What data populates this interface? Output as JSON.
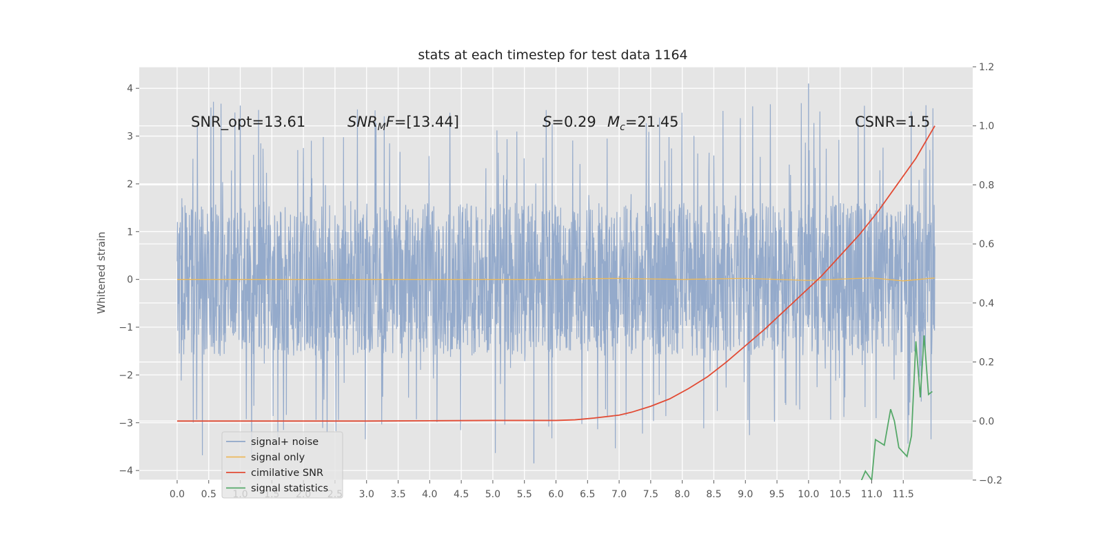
{
  "chart_data": {
    "type": "line",
    "title": "stats at each timestep for test data 1164",
    "ylabel": "Whitened strain",
    "xlabel": "",
    "xlim": [
      -0.6,
      12.6
    ],
    "ylim": [
      -4.2,
      4.45
    ],
    "y2lim": [
      -0.2,
      1.2
    ],
    "grid": true,
    "legend_placement": "lower-left",
    "x_ticks": [
      "0.0",
      "0.5",
      "1.0",
      "1.5",
      "2.0",
      "2.5",
      "3.0",
      "3.5",
      "4.0",
      "4.5",
      "5.0",
      "5.5",
      "6.0",
      "6.5",
      "7.0",
      "7.5",
      "8.0",
      "8.5",
      "9.0",
      "9.5",
      "10.0",
      "10.5",
      "11.0",
      "11.5"
    ],
    "y_ticks": [
      "−4",
      "−3",
      "−2",
      "−1",
      "0",
      "1",
      "2",
      "3",
      "4"
    ],
    "y2_ticks": [
      "−0.2",
      "0.0",
      "0.2",
      "0.4",
      "0.6",
      "0.8",
      "1.0",
      "1.2"
    ],
    "annotations": {
      "snr_opt": "SNR_opt=13.61",
      "snr_mf_prefix": "SNR",
      "snr_mf_sub": "M",
      "snr_mf_suffix": "F=[13.44]",
      "s_prefix": "S",
      "s_value": "=0.29",
      "mc_prefix": "M",
      "mc_sub": "c",
      "mc_value": "=21.45",
      "csnr": "CSNR=1.5"
    },
    "series": [
      {
        "name": "signal+ noise",
        "color": "#8fa6c9",
        "axis": "left",
        "style": "noise",
        "x_range": [
          0.0,
          12.0
        ],
        "typical_range": [
          -1.6,
          1.6
        ],
        "peak_max": 4.1,
        "peak_min": -3.85
      },
      {
        "name": "signal only",
        "color": "#ecb95a",
        "axis": "left",
        "x": [
          0.0,
          6.0,
          6.4,
          7.0,
          8.0,
          9.0,
          10.0,
          11.0,
          11.5,
          12.0
        ],
        "y": [
          0.0,
          0.0,
          0.01,
          0.02,
          0.0,
          0.02,
          -0.02,
          0.03,
          -0.03,
          0.03
        ]
      },
      {
        "name": "cimilative SNR",
        "color": "#e24a33",
        "axis": "right",
        "x": [
          0.0,
          1.0,
          2.0,
          3.0,
          4.0,
          5.0,
          6.0,
          6.3,
          6.6,
          7.0,
          7.2,
          7.5,
          7.8,
          8.1,
          8.4,
          8.7,
          9.0,
          9.3,
          9.6,
          9.9,
          10.2,
          10.5,
          10.8,
          11.1,
          11.4,
          11.7,
          12.0
        ],
        "y": [
          0.0,
          0.0,
          0.0,
          0.0,
          0.001,
          0.002,
          0.002,
          0.004,
          0.01,
          0.02,
          0.03,
          0.05,
          0.075,
          0.11,
          0.15,
          0.2,
          0.255,
          0.31,
          0.37,
          0.43,
          0.49,
          0.56,
          0.63,
          0.71,
          0.8,
          0.89,
          1.0
        ]
      },
      {
        "name": "signal statistics",
        "color": "#55a868",
        "axis": "right",
        "x": [
          10.8,
          10.9,
          11.0,
          11.06,
          11.2,
          11.3,
          11.36,
          11.43,
          11.56,
          11.63,
          11.7,
          11.77,
          11.83,
          11.9,
          11.96
        ],
        "y": [
          -0.22,
          -0.17,
          -0.2,
          -0.063,
          -0.082,
          0.04,
          0.0,
          -0.09,
          -0.12,
          -0.05,
          0.27,
          0.08,
          0.29,
          0.09,
          0.1
        ]
      }
    ]
  }
}
